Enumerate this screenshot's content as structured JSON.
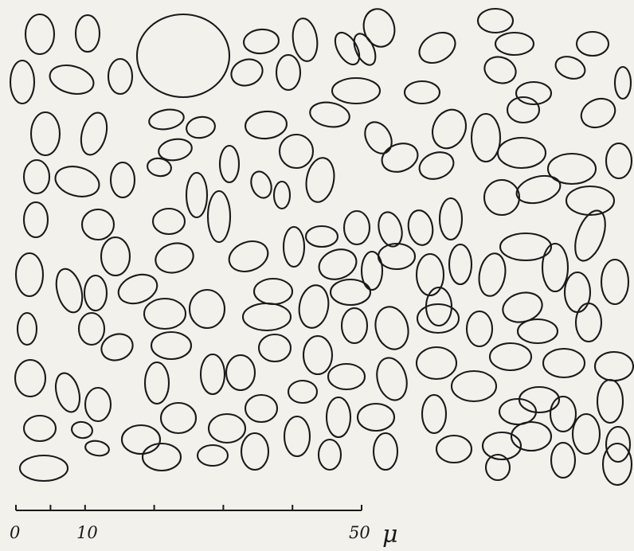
{
  "scale_bar": {
    "ticks": [
      0,
      5,
      10,
      20,
      30,
      40,
      50
    ],
    "labels": [
      {
        "value": 0,
        "text": "0"
      },
      {
        "value": 10,
        "text": "10"
      },
      {
        "value": 50,
        "text": "50"
      }
    ],
    "unit": "μ"
  },
  "colors": {
    "ink": "#1a1a1a",
    "paper": "#f3f1ec"
  }
}
